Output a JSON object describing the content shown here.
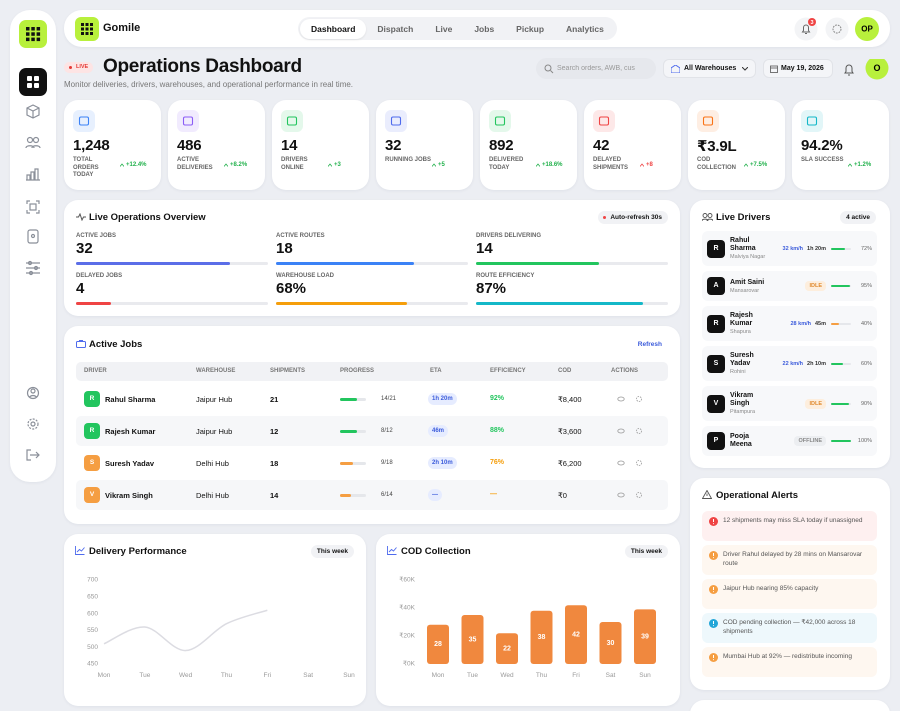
{
  "brand": {
    "name": "Gomile"
  },
  "nav": {
    "tabs": [
      "Dashboard",
      "Dispatch",
      "Live",
      "Jobs",
      "Pickup",
      "Analytics"
    ],
    "active_tab": 0,
    "notifications": "3",
    "avatar": "OP"
  },
  "header": {
    "badge": "LIVE",
    "title": "Operations Dashboard",
    "subtitle": "Monitor deliveries, drivers, warehouses, and operational performance in real time.",
    "search_placeholder": "Search orders, AWB, cus",
    "warehouse": "All Warehouses",
    "date": "May 19, 2026",
    "avatar": "O"
  },
  "kpis": [
    {
      "value": "1,248",
      "label": "TOTAL ORDERS TODAY",
      "change": "+12.4%",
      "color": "#3b82f6",
      "change_color": "#22b14c"
    },
    {
      "value": "486",
      "label": "ACTIVE DELIVERIES",
      "change": "+8.2%",
      "color": "#8b5cf6",
      "change_color": "#22b14c"
    },
    {
      "value": "14",
      "label": "DRIVERS ONLINE",
      "change": "+3",
      "color": "#22c55e",
      "change_color": "#22b14c"
    },
    {
      "value": "32",
      "label": "RUNNING JOBS",
      "change": "+5",
      "color": "#4f6bed",
      "change_color": "#22b14c"
    },
    {
      "value": "892",
      "label": "DELIVERED TODAY",
      "change": "+18.6%",
      "color": "#22c55e",
      "change_color": "#22b14c"
    },
    {
      "value": "42",
      "label": "DELAYED SHIPMENTS",
      "change": "+8",
      "color": "#ef4444",
      "change_color": "#ef4444"
    },
    {
      "value": "₹3.9L",
      "label": "COD COLLECTION",
      "change": "+7.5%",
      "color": "#f97316",
      "change_color": "#22b14c"
    },
    {
      "value": "94.2%",
      "label": "SLA SUCCESS",
      "change": "+1.2%",
      "color": "#14b8c8",
      "change_color": "#22b14c"
    }
  ],
  "overview": {
    "title": "Live Operations Overview",
    "refresh": "Auto-refresh 30s",
    "metrics": [
      {
        "label": "ACTIVE JOBS",
        "value": "32",
        "progress": 80,
        "color": "#5b6ee8"
      },
      {
        "label": "ACTIVE ROUTES",
        "value": "18",
        "progress": 72,
        "color": "#3b82f6"
      },
      {
        "label": "DRIVERS DELIVERING",
        "value": "14",
        "progress": 64,
        "color": "#22c55e"
      },
      {
        "label": "DELAYED JOBS",
        "value": "4",
        "progress": 18,
        "color": "#ef4444"
      },
      {
        "label": "WAREHOUSE LOAD",
        "value": "68%",
        "progress": 68,
        "color": "#f59e0b"
      },
      {
        "label": "ROUTE EFFICIENCY",
        "value": "87%",
        "progress": 87,
        "color": "#14b8c8"
      }
    ]
  },
  "jobs": {
    "title": "Active Jobs",
    "refresh": "Refresh",
    "columns": [
      "DRIVER",
      "WAREHOUSE",
      "SHIPMENTS",
      "PROGRESS",
      "ETA",
      "EFFICIENCY",
      "COD",
      "ACTIONS"
    ],
    "rows": [
      {
        "initial": "R",
        "driver": "Rahul Sharma",
        "warehouse": "Jaipur Hub",
        "shipments": "21",
        "progress": {
          "label": "14/21",
          "done": 14,
          "total": 21
        },
        "eta": "1h 20m",
        "efficiency": "92%",
        "cod": "₹8,400",
        "color": "#22c55e",
        "efficiency_color": "#22c55e"
      },
      {
        "initial": "R",
        "driver": "Rajesh Kumar",
        "warehouse": "Jaipur Hub",
        "shipments": "12",
        "progress": {
          "label": "8/12",
          "done": 8,
          "total": 12
        },
        "eta": "46m",
        "efficiency": "88%",
        "cod": "₹3,600",
        "color": "#22c55e",
        "efficiency_color": "#22c55e"
      },
      {
        "initial": "S",
        "driver": "Suresh Yadav",
        "warehouse": "Delhi Hub",
        "shipments": "18",
        "progress": {
          "label": "9/18",
          "done": 9,
          "total": 18
        },
        "eta": "2h 10m",
        "efficiency": "76%",
        "cod": "₹6,200",
        "color": "#f59e42",
        "efficiency_color": "#f59e0b"
      },
      {
        "initial": "V",
        "driver": "Vikram Singh",
        "warehouse": "Delhi Hub",
        "shipments": "14",
        "progress": {
          "label": "6/14",
          "done": 6,
          "total": 14
        },
        "eta": "—",
        "efficiency": "—",
        "cod": "₹0",
        "color": "#f59e42",
        "efficiency_color": "#f59e0b"
      }
    ]
  },
  "drivers": {
    "title": "Live Drivers",
    "count": "4 active",
    "items": [
      {
        "initial": "R",
        "name": "Rahul Sharma",
        "area": "Malviya Nagar",
        "speed": "32 km/h",
        "eta": "1h 20m",
        "progress": 72,
        "progress_label": "72%",
        "color": "#22c55e"
      },
      {
        "initial": "A",
        "name": "Amit Saini",
        "area": "Mansarovar",
        "status": "IDLE",
        "progress": 95,
        "progress_label": "95%",
        "color": "#22c55e"
      },
      {
        "initial": "R",
        "name": "Rajesh Kumar",
        "area": "Shapura",
        "speed": "28 km/h",
        "eta": "45m",
        "progress": 40,
        "progress_label": "40%",
        "color": "#f59e42"
      },
      {
        "initial": "S",
        "name": "Suresh Yadav",
        "area": "Rohini",
        "speed": "22 km/h",
        "eta": "2h 10m",
        "progress": 60,
        "progress_label": "60%",
        "color": "#22c55e"
      },
      {
        "initial": "V",
        "name": "Vikram Singh",
        "area": "Pitampura",
        "status": "IDLE",
        "progress": 90,
        "progress_label": "90%",
        "color": "#22c55e"
      },
      {
        "initial": "P",
        "name": "Pooja Meena",
        "status": "OFFLINE",
        "progress": 100,
        "progress_label": "100%",
        "color": "#22c55e"
      }
    ]
  },
  "alerts": {
    "title": "Operational Alerts",
    "items": [
      {
        "text": "12 shipments may miss SLA today if unassigned",
        "color": "#ef4444"
      },
      {
        "text": "Driver Rahul delayed by 28 mins on Mansarovar route",
        "color": "#f59e42"
      },
      {
        "text": "Jaipur Hub nearing 85% capacity",
        "color": "#f59e42"
      },
      {
        "text": "COD pending collection — ₹42,000 across 18 shipments",
        "color": "#22a6d8"
      },
      {
        "text": "Mumbai Hub at 92% — redistribute incoming",
        "color": "#f59e42"
      }
    ]
  },
  "chart_data": [
    {
      "type": "line",
      "title": "Delivery Performance",
      "badge": "This week",
      "categories": [
        "Mon",
        "Tue",
        "Wed",
        "Thu",
        "Fri",
        "Sat",
        "Sun"
      ],
      "values": [
        510,
        560,
        490,
        570,
        610,
        null,
        null
      ],
      "color": "#dcdce2",
      "ylim": [
        450,
        700
      ],
      "yticks": [
        450,
        500,
        550,
        600,
        650,
        700
      ]
    },
    {
      "type": "bar",
      "title": "COD Collection",
      "badge": "This week",
      "categories": [
        "Mon",
        "Tue",
        "Wed",
        "Thu",
        "Fri",
        "Sat",
        "Sun"
      ],
      "values": [
        28,
        35,
        22,
        38,
        42,
        30,
        39
      ],
      "color": "#f0883e",
      "ylim": [
        0,
        60
      ],
      "yticks": [
        {
          "value": 0,
          "label": "₹0K"
        },
        {
          "value": 20,
          "label": "₹20K"
        },
        {
          "value": 40,
          "label": "₹40K"
        },
        {
          "value": 60,
          "label": "₹60K"
        }
      ]
    }
  ]
}
